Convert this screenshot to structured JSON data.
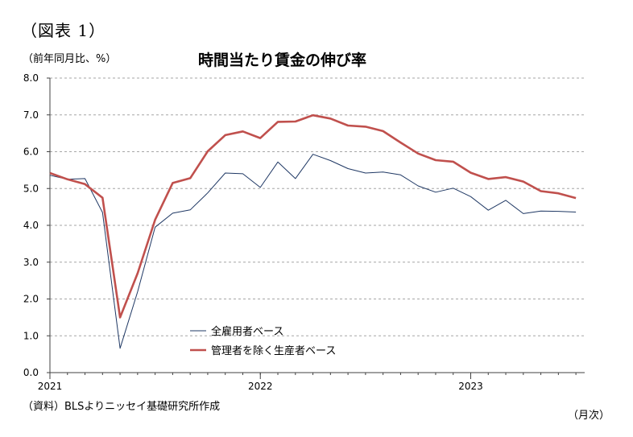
{
  "figure_label": "（図表 1）",
  "unit_label": "（前年同月比、%）",
  "source_note": "（資料）BLSよりニッセイ基礎研究所作成",
  "x_unit": "（月次）",
  "colors": {
    "series1": "#1f3864",
    "series2": "#c0504d",
    "grid": "#a6a6a6",
    "axis": "#404040"
  },
  "chart_data": {
    "type": "line",
    "title": "時間当たり賃金の伸び率",
    "ylabel": "（前年同月比、%）",
    "xlabel": "（月次）",
    "ylim": [
      0,
      8
    ],
    "yticks": [
      "0.0",
      "1.0",
      "2.0",
      "3.0",
      "4.0",
      "5.0",
      "6.0",
      "7.0",
      "8.0"
    ],
    "xtick_labels": [
      "2021",
      "2022",
      "2023"
    ],
    "grid": "horizontal-dashed",
    "legend": "lower-middle",
    "x": [
      "2021-01",
      "2021-02",
      "2021-03",
      "2021-04",
      "2021-05",
      "2021-06",
      "2021-07",
      "2021-08",
      "2021-09",
      "2021-10",
      "2021-11",
      "2021-12",
      "2022-01",
      "2022-02",
      "2022-03",
      "2022-04",
      "2022-05",
      "2022-06",
      "2022-07",
      "2022-08",
      "2022-09",
      "2022-10",
      "2022-11",
      "2022-12",
      "2023-01",
      "2023-02",
      "2023-03",
      "2023-04",
      "2023-05",
      "2023-06",
      "2023-07"
    ],
    "series": [
      {
        "name": "全雇用者ベース",
        "values": [
          5.36,
          5.25,
          5.27,
          4.35,
          0.66,
          2.2,
          3.95,
          4.33,
          4.42,
          4.88,
          5.42,
          5.4,
          5.03,
          5.72,
          5.27,
          5.93,
          5.76,
          5.54,
          5.42,
          5.45,
          5.37,
          5.07,
          4.9,
          5.01,
          4.78,
          4.41,
          4.68,
          4.32,
          4.39,
          4.38,
          4.36
        ]
      },
      {
        "name": "管理者を除く生産者ベース",
        "values": [
          5.42,
          5.25,
          5.12,
          4.75,
          1.5,
          2.7,
          4.15,
          5.15,
          5.28,
          6.01,
          6.45,
          6.55,
          6.37,
          6.81,
          6.82,
          6.99,
          6.9,
          6.71,
          6.68,
          6.56,
          6.25,
          5.95,
          5.77,
          5.73,
          5.43,
          5.26,
          5.31,
          5.19,
          4.93,
          4.87,
          4.74
        ]
      }
    ]
  }
}
